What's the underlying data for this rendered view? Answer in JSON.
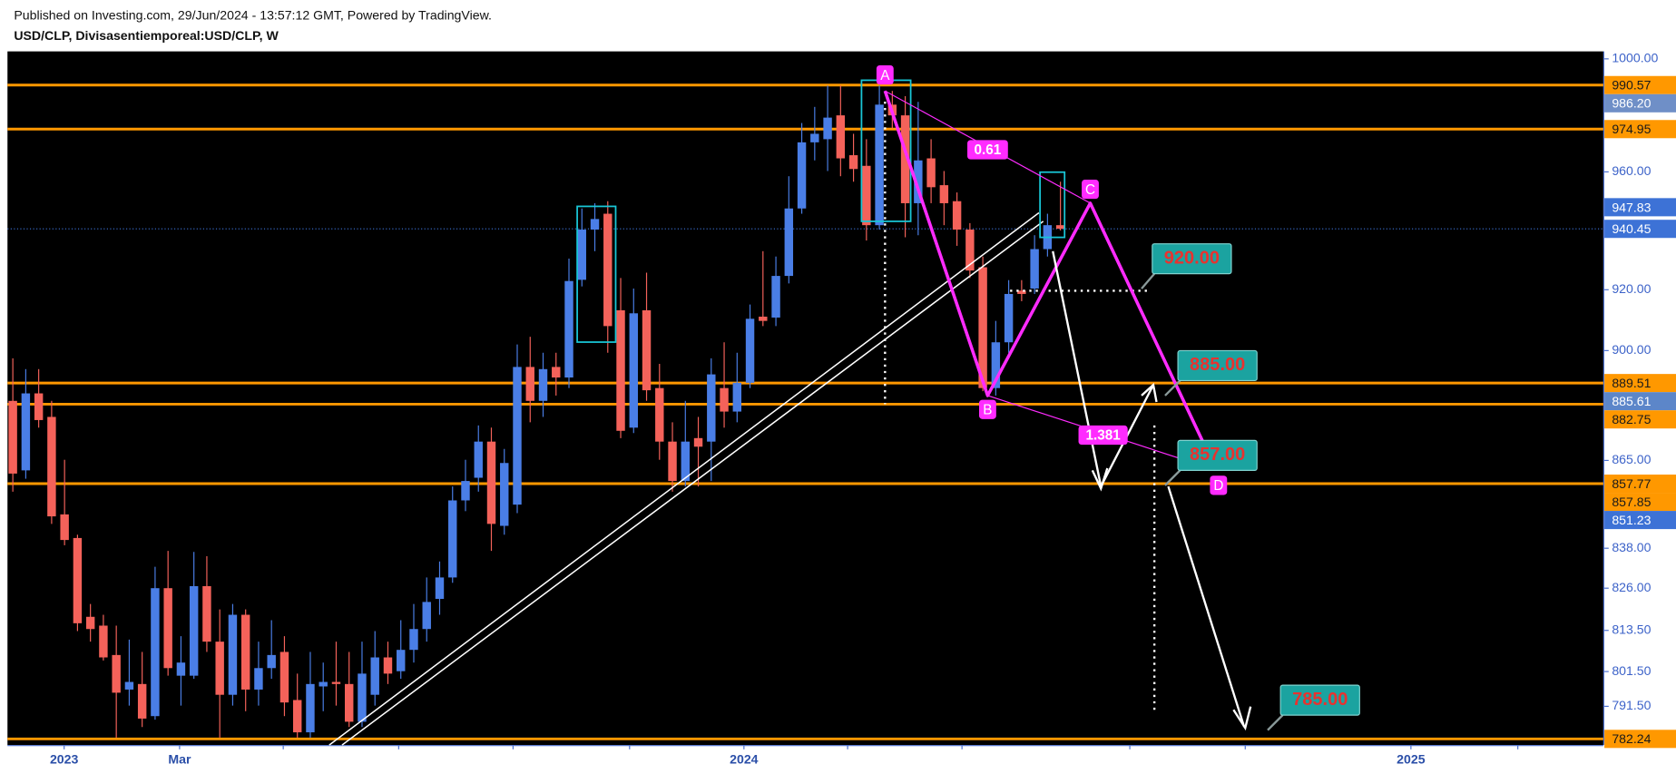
{
  "chart_data": {
    "type": "candlestick",
    "subtitle": "Published on Investing.com, 29/Jun/2024 - 13:57:12 GMT, Powered by TradingView.",
    "title": "USD/CLP, Divisasentiemporeal:USD/CLP, W",
    "log_scale": true,
    "grid": false,
    "up_color": "#4a7ee6",
    "down_color": "#f4625a",
    "ylim": [
      780.5,
      1002.7
    ],
    "yticks": [
      {
        "value": 1000,
        "label": "1000.00"
      },
      {
        "value": 960,
        "label": "960.00"
      },
      {
        "value": 920,
        "label": "920.00"
      },
      {
        "value": 900,
        "label": "900.00"
      },
      {
        "value": 865,
        "label": "865.00"
      },
      {
        "value": 838,
        "label": "838.00"
      },
      {
        "value": 826,
        "label": "826.00"
      },
      {
        "value": 813.5,
        "label": "813.50"
      },
      {
        "value": 801.5,
        "label": "801.50"
      },
      {
        "value": 791.5,
        "label": "791.50"
      }
    ],
    "xticks": [
      "2023",
      "Mar",
      "2024",
      "2025"
    ],
    "open": [
      883.8,
      861.9,
      886.2,
      878.7,
      848.3,
      841.1,
      817.5,
      814.9,
      806.3,
      796.3,
      797.9,
      788.7,
      826.0,
      800.3,
      800.3,
      826.6,
      810.2,
      794.8,
      818.1,
      796.3,
      802.5,
      807.2,
      793.3,
      784.1,
      797.2,
      798.5,
      797.9,
      787.1,
      794.8,
      805.6,
      801.6,
      807.8,
      813.9,
      822.8,
      829.2,
      852.6,
      859.6,
      870.9,
      844.8,
      851.3,
      894.7,
      883.8,
      894.7,
      891.3,
      923.3,
      940.2,
      945.6,
      913.2,
      875.3,
      913.2,
      887.9,
      870.9,
      858.6,
      872.0,
      870.9,
      887.9,
      880.4,
      889.6,
      911.1,
      910.8,
      924.6,
      947.4,
      970.3,
      971.4,
      979.8,
      965.8,
      962.1,
      941.7,
      983.6,
      979.8,
      949.2,
      964.7,
      955.4,
      949.9,
      940.2,
      927.5,
      887.9,
      902.7,
      919.7,
      920.4,
      933.6,
      941.7
    ],
    "high": [
      897.5,
      894.0,
      894.0,
      883.8,
      865.2,
      842.1,
      821.3,
      818.1,
      814.9,
      810.8,
      807.2,
      832.4,
      837.2,
      811.8,
      836.9,
      835.6,
      819.7,
      821.3,
      819.7,
      810.2,
      816.5,
      811.8,
      800.9,
      807.2,
      804.1,
      810.2,
      807.2,
      810.2,
      813.3,
      810.2,
      816.5,
      821.3,
      829.2,
      834.0,
      856.9,
      865.2,
      876.0,
      875.3,
      868.6,
      902.0,
      904.5,
      899.3,
      899.3,
      930.4,
      947.4,
      949.2,
      949.9,
      923.9,
      920.4,
      925.7,
      895.7,
      877.0,
      883.8,
      878.7,
      897.5,
      902.7,
      899.3,
      915.1,
      932.9,
      931.1,
      958.5,
      977.1,
      982.8,
      990.4,
      990.4,
      973.3,
      971.4,
      990.4,
      988.5,
      986.6,
      984.6,
      971.4,
      960.3,
      952.9,
      942.4,
      931.1,
      909.7,
      923.2,
      923.2,
      938.3,
      945.6,
      956.6
    ],
    "low": [
      855.3,
      859.3,
      875.3,
      845.4,
      838.9,
      813.3,
      810.2,
      804.7,
      782.6,
      791.7,
      785.6,
      787.7,
      800.3,
      791.7,
      799.4,
      807.2,
      782.6,
      791.7,
      790.1,
      791.7,
      799.4,
      788.7,
      782.6,
      782.6,
      790.1,
      791.7,
      785.6,
      785.6,
      791.7,
      797.9,
      799.4,
      804.1,
      810.2,
      818.1,
      827.6,
      849.3,
      855.3,
      837.2,
      842.1,
      848.7,
      877.0,
      878.7,
      885.5,
      887.9,
      921.1,
      932.9,
      899.3,
      872.0,
      873.6,
      883.8,
      865.2,
      855.3,
      856.9,
      856.9,
      858.6,
      875.3,
      877.0,
      887.9,
      908.0,
      908.0,
      922.1,
      945.6,
      964.0,
      960.3,
      958.5,
      956.6,
      936.5,
      940.2,
      975.2,
      937.6,
      938.3,
      949.2,
      941.7,
      934.7,
      923.9,
      886.9,
      885.5,
      899.3,
      916.2,
      918.6,
      931.1,
      939.9
    ],
    "close": [
      860.9,
      886.2,
      877.7,
      847.7,
      840.5,
      815.6,
      813.9,
      805.6,
      795.4,
      798.5,
      788.0,
      826.0,
      802.5,
      804.1,
      826.6,
      810.2,
      794.8,
      818.1,
      796.3,
      802.5,
      806.3,
      792.6,
      784.1,
      797.9,
      798.5,
      797.9,
      787.1,
      800.9,
      805.6,
      800.9,
      807.8,
      813.9,
      821.9,
      829.2,
      852.6,
      858.6,
      870.9,
      845.4,
      864.2,
      894.7,
      883.8,
      894.0,
      891.3,
      922.9,
      940.2,
      943.8,
      908.0,
      874.3,
      912.2,
      887.2,
      870.9,
      858.6,
      870.9,
      869.3,
      892.3,
      880.4,
      889.6,
      910.4,
      909.7,
      924.6,
      947.4,
      970.3,
      973.3,
      979.0,
      964.7,
      961.0,
      941.7,
      983.6,
      979.8,
      949.2,
      964.0,
      954.7,
      949.2,
      940.2,
      926.4,
      887.9,
      902.7,
      918.6,
      918.6,
      933.6,
      941.7,
      940.5
    ],
    "levels": [
      {
        "value": 990.57,
        "color": "#ff9800",
        "line": "solid"
      },
      {
        "value": 986.2,
        "label": "986.20",
        "color": "#6f8fc7",
        "line": "none"
      },
      {
        "value": 974.95,
        "color": "#ff9800",
        "line": "solid"
      },
      {
        "value": 947.83,
        "color": "#3d72d6",
        "line": "none"
      },
      {
        "value": 940.45,
        "color": "#3d72d6",
        "line": "dotted"
      },
      {
        "value": 889.51,
        "color": "#ff9800",
        "line": "solid"
      },
      {
        "value": 885.61,
        "color": "#5c86c9",
        "line": "none"
      },
      {
        "value": 882.75,
        "color": "#ff9800",
        "line": "solid"
      },
      {
        "value": 857.77,
        "color": "#ff9800",
        "line": "solid"
      },
      {
        "value": 857.85,
        "color": "#ff9800",
        "line": "none"
      },
      {
        "value": 851.23,
        "color": "#3d72d6",
        "line": "none"
      },
      {
        "value": 782.24,
        "color": "#ff9800",
        "line": "solid"
      }
    ],
    "pattern_points": [
      "A",
      "B",
      "C",
      "D"
    ],
    "ratios": [
      "0.61",
      "1.381"
    ],
    "targets": [
      "920.00",
      "885.00",
      "857.00",
      "785.00"
    ]
  }
}
